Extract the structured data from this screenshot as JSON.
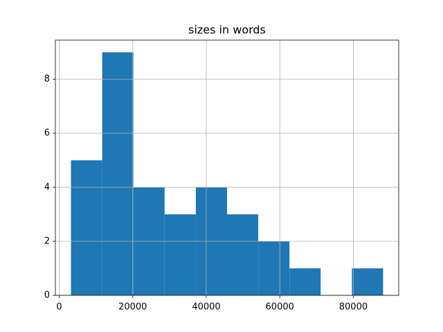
{
  "chart_data": {
    "type": "histogram",
    "title": "sizes in words",
    "bins": [
      3200,
      11690,
      20180,
      28670,
      37160,
      45650,
      54140,
      62630,
      71120,
      79610,
      88100
    ],
    "values": [
      5,
      9,
      4,
      3,
      4,
      3,
      2,
      1,
      0,
      1
    ],
    "color": "#1f77b4",
    "xlim": [
      -1045,
      92345
    ],
    "xticks": [
      0,
      20000,
      40000,
      60000,
      80000
    ],
    "ylim": [
      0,
      9.45
    ],
    "yticks": [
      0,
      2,
      4,
      6,
      8
    ],
    "grid": true
  }
}
